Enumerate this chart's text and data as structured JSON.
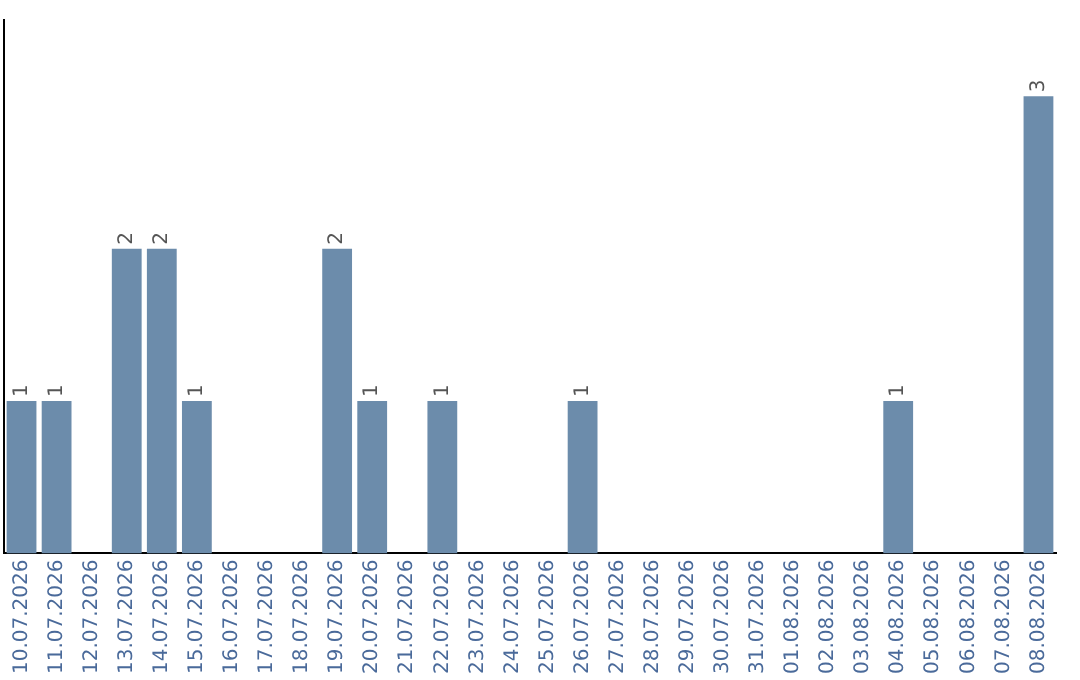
{
  "chart_data": {
    "type": "bar",
    "categories": [
      "10.07.2026",
      "11.07.2026",
      "12.07.2026",
      "13.07.2026",
      "14.07.2026",
      "15.07.2026",
      "16.07.2026",
      "17.07.2026",
      "18.07.2026",
      "19.07.2026",
      "20.07.2026",
      "21.07.2026",
      "22.07.2026",
      "23.07.2026",
      "24.07.2026",
      "25.07.2026",
      "26.07.2026",
      "27.07.2026",
      "28.07.2026",
      "29.07.2026",
      "30.07.2026",
      "31.07.2026",
      "01.08.2026",
      "02.08.2026",
      "03.08.2026",
      "04.08.2026",
      "05.08.2026",
      "06.08.2026",
      "07.08.2026",
      "08.08.2026"
    ],
    "values": [
      1,
      1,
      0,
      2,
      2,
      1,
      0,
      0,
      0,
      2,
      1,
      0,
      1,
      0,
      0,
      0,
      1,
      0,
      0,
      0,
      0,
      0,
      0,
      0,
      0,
      1,
      0,
      0,
      0,
      3
    ],
    "value_labels": [
      "1",
      "1",
      null,
      "2",
      "2",
      "1",
      null,
      null,
      null,
      "2",
      "1",
      null,
      "1",
      null,
      null,
      null,
      "1",
      null,
      null,
      null,
      null,
      null,
      null,
      null,
      null,
      "1",
      null,
      null,
      null,
      "3"
    ],
    "color": "#6c8cab",
    "grid": false,
    "legend": false
  }
}
